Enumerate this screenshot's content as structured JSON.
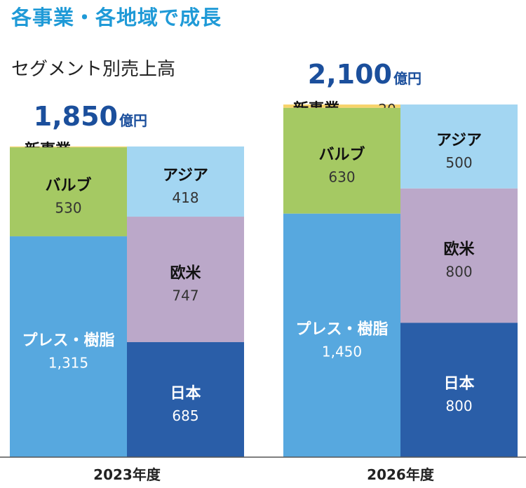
{
  "headline": "各事業・各地域で成長",
  "subtitle": "セグメント別売上高",
  "colors": {
    "new_business": "#f7d36b",
    "valve": "#a5c963",
    "press_resin": "#57a8df",
    "asia": "#a3d6f2",
    "europe_america": "#bba8c9",
    "japan": "#2a5ea8",
    "total_text": "#1b4f9c"
  },
  "chart_data": {
    "type": "bar",
    "stacked": true,
    "title": "セグメント別売上高",
    "unit": "億円",
    "categories": [
      "2023年度",
      "2026年度"
    ],
    "totals": [
      {
        "number": "1,850",
        "unit": "億円",
        "value": 1850
      },
      {
        "number": "2,100",
        "unit": "億円",
        "value": 2100
      }
    ],
    "series_business": [
      {
        "name": "新事業",
        "values": [
          5,
          20
        ],
        "value_labels": [
          "",
          "20"
        ],
        "color_key": "new_business"
      },
      {
        "name": "バルブ",
        "values": [
          530,
          630
        ],
        "value_labels": [
          "530",
          "630"
        ],
        "color_key": "valve"
      },
      {
        "name": "プレス・樹脂",
        "values": [
          1315,
          1450
        ],
        "value_labels": [
          "1,315",
          "1,450"
        ],
        "color_key": "press_resin"
      }
    ],
    "series_region": [
      {
        "name": "アジア",
        "values": [
          418,
          500
        ],
        "value_labels": [
          "418",
          "500"
        ],
        "color_key": "asia"
      },
      {
        "name": "欧米",
        "values": [
          747,
          800
        ],
        "value_labels": [
          "747",
          "800"
        ],
        "color_key": "europe_america"
      },
      {
        "name": "日本",
        "values": [
          685,
          800
        ],
        "value_labels": [
          "685",
          "800"
        ],
        "color_key": "japan"
      }
    ]
  }
}
